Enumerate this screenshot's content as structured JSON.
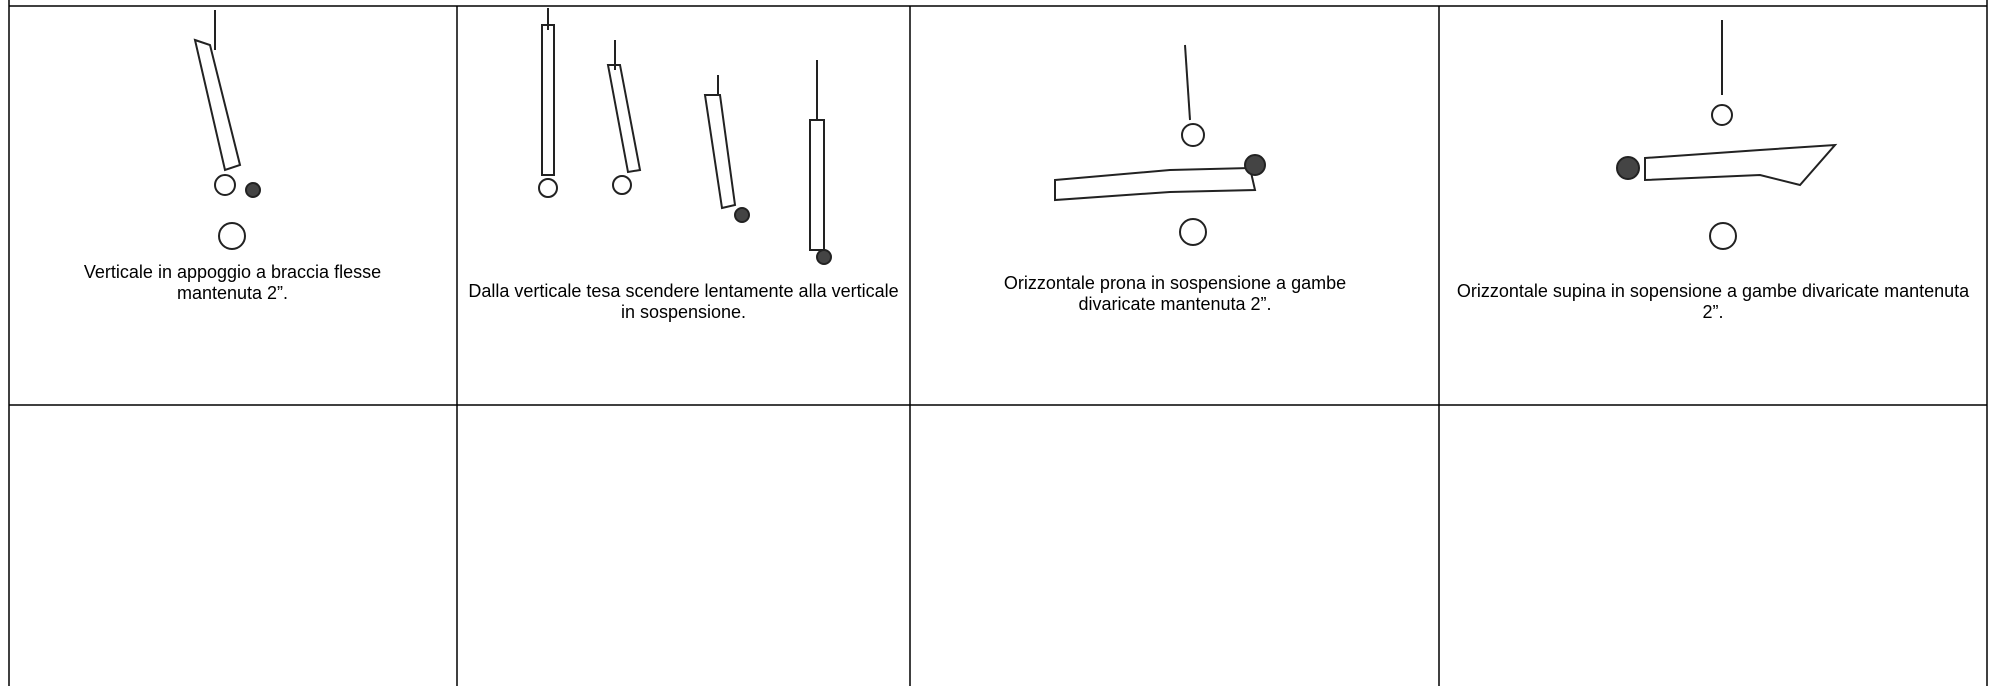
{
  "table": {
    "rows": [
      [
        "Verticale in appoggio a braccia flesse mantenuta 2”.",
        "Dalla verticale tesa scendere lentamente alla verticale in sospensione.",
        "Orizzontale prona in sospensione a gambe divaricate mantenuta 2”.",
        "Orizzontale supina in sopensione a gambe divaricate mantenuta 2”."
      ],
      [
        "",
        "",
        "",
        ""
      ]
    ]
  }
}
